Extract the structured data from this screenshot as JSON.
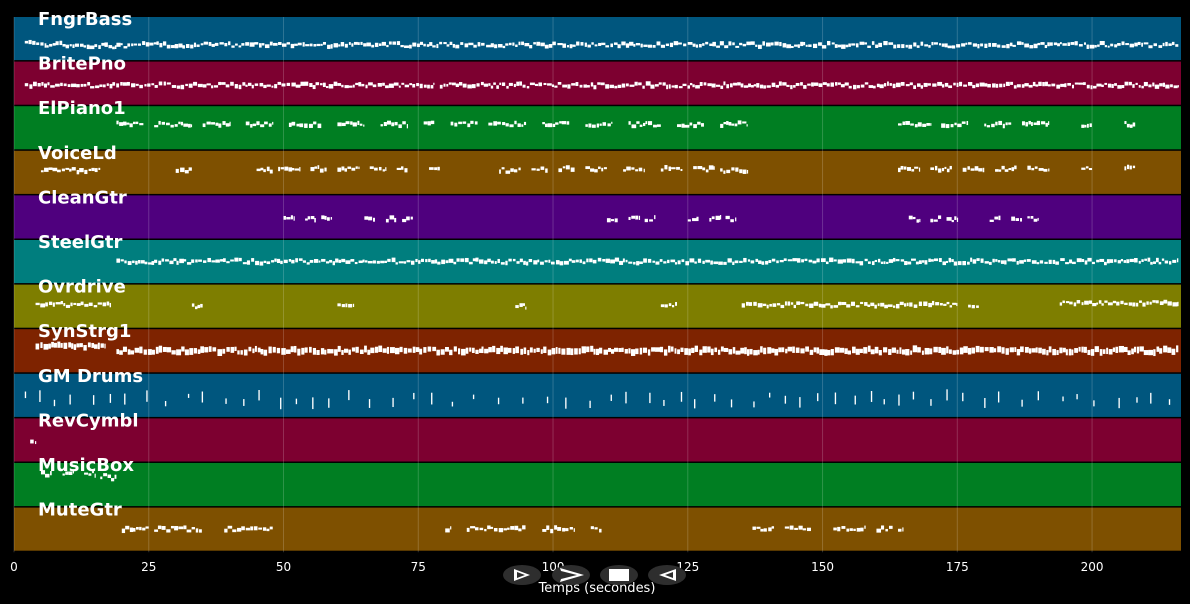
{
  "chart_data": {
    "type": "piano-roll",
    "xlabel": "Temps (secondes)",
    "xlim": [
      0,
      216.5
    ],
    "xticks": [
      0,
      25,
      50,
      75,
      100,
      125,
      150,
      175,
      200
    ],
    "grid": true,
    "tracks": [
      {
        "name": "FngrBass",
        "color": "#00567e",
        "segments": [
          [
            2,
            6,
            0.62
          ],
          [
            6,
            9,
            0.64
          ],
          [
            9,
            14,
            0.66
          ],
          [
            14,
            19,
            0.68
          ],
          [
            19,
            23,
            0.67
          ],
          [
            23,
            216,
            0.65
          ]
        ]
      },
      {
        "name": "BritePno",
        "color": "#7d0030",
        "segments": [
          [
            2,
            78,
            0.55
          ],
          [
            79,
            216,
            0.55
          ]
        ]
      },
      {
        "name": "ElPiano1",
        "color": "#007e22",
        "segments": [
          [
            19,
            24,
            0.42
          ],
          [
            26,
            33,
            0.42
          ],
          [
            35,
            40,
            0.42
          ],
          [
            43,
            48,
            0.42
          ],
          [
            51,
            57,
            0.42
          ],
          [
            60,
            65,
            0.42
          ],
          [
            68,
            73,
            0.42
          ],
          [
            76,
            78,
            0.42
          ],
          [
            81,
            86,
            0.42
          ],
          [
            88,
            95,
            0.42
          ],
          [
            98,
            103,
            0.42
          ],
          [
            106,
            111,
            0.42
          ],
          [
            114,
            120,
            0.42
          ],
          [
            123,
            128,
            0.42
          ],
          [
            131,
            136,
            0.42
          ],
          [
            164,
            170,
            0.42
          ],
          [
            172,
            177,
            0.42
          ],
          [
            180,
            185,
            0.42
          ],
          [
            187,
            192,
            0.42
          ],
          [
            198,
            200,
            0.42
          ],
          [
            206,
            208,
            0.42
          ]
        ]
      },
      {
        "name": "VoiceLd",
        "color": "#7e5000",
        "segments": [
          [
            5,
            16,
            0.45
          ],
          [
            30,
            33,
            0.45
          ],
          [
            45,
            48,
            0.45
          ],
          [
            49,
            53,
            0.42
          ],
          [
            55,
            58,
            0.42
          ],
          [
            60,
            64,
            0.42
          ],
          [
            66,
            69,
            0.42
          ],
          [
            71,
            73,
            0.42
          ],
          [
            77,
            79,
            0.45
          ],
          [
            90,
            94,
            0.45
          ],
          [
            96,
            99,
            0.42
          ],
          [
            101,
            104,
            0.42
          ],
          [
            106,
            110,
            0.42
          ],
          [
            113,
            117,
            0.42
          ],
          [
            120,
            124,
            0.42
          ],
          [
            126,
            130,
            0.42
          ],
          [
            131,
            136,
            0.45
          ],
          [
            164,
            168,
            0.42
          ],
          [
            170,
            174,
            0.42
          ],
          [
            176,
            180,
            0.42
          ],
          [
            182,
            186,
            0.42
          ],
          [
            188,
            192,
            0.42
          ],
          [
            198,
            200,
            0.42
          ],
          [
            206,
            208,
            0.42
          ]
        ]
      },
      {
        "name": "CleanGtr",
        "color": "#4f007e",
        "segments": [
          [
            50,
            52,
            0.55
          ],
          [
            54,
            56,
            0.55
          ],
          [
            57,
            59,
            0.55
          ],
          [
            65,
            67,
            0.55
          ],
          [
            69,
            71,
            0.55
          ],
          [
            72,
            74,
            0.55
          ],
          [
            110,
            112,
            0.55
          ],
          [
            114,
            116,
            0.55
          ],
          [
            117,
            119,
            0.55
          ],
          [
            125,
            127,
            0.55
          ],
          [
            129,
            131,
            0.55
          ],
          [
            132,
            134,
            0.55
          ],
          [
            166,
            168,
            0.55
          ],
          [
            170,
            172,
            0.55
          ],
          [
            173,
            175,
            0.55
          ],
          [
            181,
            183,
            0.55
          ],
          [
            185,
            187,
            0.55
          ],
          [
            188,
            190,
            0.55
          ]
        ]
      },
      {
        "name": "SteelGtr",
        "color": "#007e7e",
        "segments": [
          [
            19,
            216,
            0.5
          ]
        ]
      },
      {
        "name": "Ovrdrive",
        "color": "#7e7e00",
        "segments": [
          [
            4,
            18,
            0.46
          ],
          [
            33,
            35,
            0.5
          ],
          [
            60,
            63,
            0.47
          ],
          [
            93,
            95,
            0.5
          ],
          [
            120,
            123,
            0.47
          ],
          [
            135,
            175,
            0.47
          ],
          [
            177,
            179,
            0.47
          ],
          [
            194,
            216,
            0.42
          ]
        ]
      },
      {
        "name": "SynStrg1",
        "color": "#7e2300",
        "segments": [
          [
            4,
            17,
            0.4
          ],
          [
            19,
            216,
            0.5
          ]
        ]
      },
      {
        "name": "GM Drums",
        "color": "#00567e",
        "segments": [
          [
            2,
            216,
            0.6
          ]
        ]
      },
      {
        "name": "RevCymbl",
        "color": "#7d0030",
        "segments": [
          [
            3,
            4,
            0.52
          ]
        ]
      },
      {
        "name": "MusicBox",
        "color": "#007e22",
        "segments": [
          [
            5,
            7,
            0.25
          ],
          [
            9,
            11,
            0.25
          ],
          [
            13,
            15,
            0.25
          ],
          [
            16,
            18,
            0.3
          ],
          [
            18,
            19,
            0.35
          ]
        ]
      },
      {
        "name": "MuteGtr",
        "color": "#7e5000",
        "segments": [
          [
            20,
            25,
            0.5
          ],
          [
            26,
            35,
            0.5
          ],
          [
            39,
            48,
            0.5
          ],
          [
            80,
            81,
            0.5
          ],
          [
            84,
            95,
            0.5
          ],
          [
            98,
            104,
            0.5
          ],
          [
            107,
            109,
            0.5
          ],
          [
            137,
            141,
            0.5
          ],
          [
            143,
            148,
            0.5
          ],
          [
            152,
            158,
            0.5
          ],
          [
            160,
            163,
            0.5
          ],
          [
            164,
            165,
            0.5
          ]
        ]
      }
    ]
  },
  "transport": {
    "play_icon": "play-outline-icon",
    "forward_icon": "fast-forward-icon",
    "stop_icon": "stop-icon",
    "rewind_icon": "rewind-icon"
  }
}
